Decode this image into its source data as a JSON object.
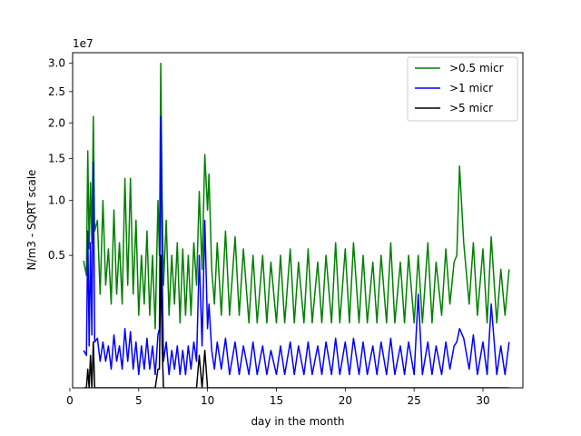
{
  "chart_data": {
    "type": "line",
    "title": "",
    "xlabel": "day in the month",
    "ylabel": "N/m3 - SQRT scale",
    "offset_text": "1e7",
    "y_scale": "sqrt",
    "xlim": [
      0.2,
      32.9
    ],
    "ylim": [
      0,
      3.2
    ],
    "y_multiplier": 10000000,
    "x_ticks": [
      0,
      5,
      10,
      15,
      20,
      25,
      30
    ],
    "y_ticks": [
      0.5,
      1.0,
      1.5,
      2.0,
      2.5,
      3.0
    ],
    "y_tick_labels": [
      "0.5",
      "1.0",
      "1.5",
      "2.0",
      "2.5",
      "3.0"
    ],
    "grid": false,
    "legend_position": "top-right",
    "series": [
      {
        "name": ">0.5 micr",
        "color": "#008000",
        "x": [
          1.0,
          1.2,
          1.3,
          1.4,
          1.5,
          1.6,
          1.7,
          1.8,
          2.0,
          2.2,
          2.4,
          2.6,
          2.8,
          3.0,
          3.2,
          3.4,
          3.6,
          3.8,
          4.0,
          4.2,
          4.4,
          4.6,
          4.8,
          5.0,
          5.2,
          5.4,
          5.6,
          5.8,
          6.0,
          6.2,
          6.4,
          6.5,
          6.6,
          6.7,
          6.8,
          7.0,
          7.2,
          7.4,
          7.6,
          7.8,
          8.0,
          8.2,
          8.4,
          8.6,
          8.8,
          9.0,
          9.2,
          9.4,
          9.6,
          9.8,
          10.0,
          10.1,
          10.3,
          10.5,
          10.7,
          11.0,
          11.3,
          11.6,
          12.0,
          12.3,
          12.6,
          13.0,
          13.3,
          13.6,
          14.0,
          14.3,
          14.6,
          15.0,
          15.3,
          15.6,
          16.0,
          16.3,
          16.6,
          17.0,
          17.3,
          17.6,
          18.0,
          18.3,
          18.6,
          19.0,
          19.3,
          19.6,
          20.0,
          20.3,
          20.6,
          21.0,
          21.3,
          21.6,
          22.0,
          22.3,
          22.6,
          23.0,
          23.3,
          23.6,
          24.0,
          24.3,
          24.6,
          25.0,
          25.3,
          25.6,
          26.0,
          26.3,
          26.6,
          27.0,
          27.3,
          27.6,
          27.9,
          28.1,
          28.3,
          28.6,
          29.0,
          29.3,
          29.6,
          30.0,
          30.3,
          30.6,
          31.0,
          31.3,
          31.6,
          31.9
        ],
        "values": [
          0.46,
          0.36,
          1.6,
          0.55,
          1.2,
          0.6,
          2.1,
          0.7,
          0.8,
          0.25,
          1.0,
          0.3,
          0.55,
          0.2,
          0.9,
          0.25,
          0.6,
          0.2,
          1.25,
          0.3,
          1.25,
          0.25,
          0.8,
          0.15,
          0.5,
          0.2,
          0.7,
          0.15,
          0.5,
          0.1,
          1.0,
          0.5,
          3.0,
          1.1,
          0.3,
          0.8,
          0.15,
          0.5,
          0.2,
          0.6,
          0.12,
          0.55,
          0.15,
          0.5,
          0.15,
          0.6,
          0.3,
          1.1,
          0.4,
          1.55,
          0.9,
          1.3,
          0.4,
          0.2,
          0.6,
          0.15,
          0.7,
          0.15,
          0.65,
          0.15,
          0.55,
          0.12,
          0.5,
          0.12,
          0.5,
          0.12,
          0.45,
          0.12,
          0.5,
          0.12,
          0.55,
          0.12,
          0.45,
          0.12,
          0.55,
          0.12,
          0.45,
          0.12,
          0.5,
          0.12,
          0.6,
          0.12,
          0.55,
          0.12,
          0.6,
          0.12,
          0.5,
          0.12,
          0.45,
          0.12,
          0.5,
          0.12,
          0.6,
          0.12,
          0.45,
          0.12,
          0.5,
          0.12,
          0.5,
          0.12,
          0.6,
          0.12,
          0.45,
          0.15,
          0.55,
          0.2,
          0.45,
          0.5,
          1.4,
          0.6,
          0.2,
          0.6,
          0.15,
          0.55,
          0.12,
          0.65,
          0.12,
          0.4,
          0.15,
          0.4
        ]
      },
      {
        "name": ">1 micr",
        "color": "#0000ff",
        "x": [
          1.0,
          1.2,
          1.3,
          1.4,
          1.5,
          1.6,
          1.7,
          1.8,
          2.0,
          2.2,
          2.4,
          2.6,
          2.8,
          3.0,
          3.2,
          3.4,
          3.6,
          3.8,
          4.0,
          4.2,
          4.4,
          4.6,
          4.8,
          5.0,
          5.2,
          5.4,
          5.6,
          5.8,
          6.0,
          6.2,
          6.4,
          6.5,
          6.6,
          6.7,
          6.8,
          7.0,
          7.2,
          7.4,
          7.6,
          7.8,
          8.0,
          8.2,
          8.4,
          8.6,
          8.8,
          9.0,
          9.2,
          9.4,
          9.6,
          9.8,
          10.0,
          10.1,
          10.3,
          10.5,
          10.7,
          11.0,
          11.3,
          11.6,
          12.0,
          12.3,
          12.6,
          13.0,
          13.3,
          13.6,
          14.0,
          14.3,
          14.6,
          15.0,
          15.3,
          15.6,
          16.0,
          16.3,
          16.6,
          17.0,
          17.3,
          17.6,
          18.0,
          18.3,
          18.6,
          19.0,
          19.3,
          19.6,
          20.0,
          20.3,
          20.6,
          21.0,
          21.3,
          21.6,
          22.0,
          22.3,
          22.6,
          23.0,
          23.3,
          23.6,
          24.0,
          24.3,
          24.6,
          25.0,
          25.3,
          25.6,
          26.0,
          26.3,
          26.6,
          27.0,
          27.3,
          27.6,
          27.9,
          28.1,
          28.3,
          28.6,
          29.0,
          29.3,
          29.6,
          30.0,
          30.3,
          30.6,
          31.0,
          31.3,
          31.6,
          31.9
        ],
        "values": [
          0.04,
          0.03,
          0.7,
          0.05,
          0.6,
          0.08,
          1.45,
          0.06,
          0.07,
          0.02,
          0.06,
          0.02,
          0.05,
          0.01,
          0.08,
          0.02,
          0.05,
          0.01,
          0.1,
          0.02,
          0.09,
          0.01,
          0.06,
          0.005,
          0.05,
          0.01,
          0.07,
          0.01,
          0.05,
          0.005,
          0.08,
          0.1,
          2.1,
          0.4,
          0.02,
          0.06,
          0.005,
          0.04,
          0.01,
          0.05,
          0.005,
          0.04,
          0.005,
          0.05,
          0.01,
          0.06,
          0.02,
          0.5,
          0.05,
          0.8,
          0.1,
          0.2,
          0.04,
          0.01,
          0.06,
          0.01,
          0.07,
          0.005,
          0.06,
          0.005,
          0.05,
          0.005,
          0.06,
          0.005,
          0.05,
          0.005,
          0.04,
          0.005,
          0.05,
          0.005,
          0.06,
          0.005,
          0.05,
          0.005,
          0.06,
          0.005,
          0.05,
          0.005,
          0.06,
          0.005,
          0.07,
          0.005,
          0.06,
          0.005,
          0.07,
          0.005,
          0.06,
          0.005,
          0.05,
          0.005,
          0.06,
          0.005,
          0.07,
          0.005,
          0.05,
          0.005,
          0.06,
          0.005,
          0.25,
          0.005,
          0.06,
          0.005,
          0.05,
          0.005,
          0.06,
          0.01,
          0.05,
          0.06,
          0.1,
          0.07,
          0.01,
          0.08,
          0.005,
          0.06,
          0.005,
          0.2,
          0.005,
          0.05,
          0.005,
          0.06
        ]
      },
      {
        "name": ">5 micr",
        "color": "#000000",
        "x": [
          1.0,
          1.2,
          1.3,
          1.4,
          1.5,
          1.6,
          1.7,
          1.8,
          2.0,
          2.2,
          2.4,
          2.6,
          2.8,
          3.0,
          3.2,
          3.4,
          3.6,
          3.8,
          4.0,
          4.2,
          4.4,
          4.6,
          4.8,
          5.0,
          5.2,
          5.4,
          5.6,
          5.8,
          6.0,
          6.2,
          6.4,
          6.5,
          6.6,
          6.7,
          6.8,
          7.0,
          7.2,
          7.4,
          7.6,
          7.8,
          8.0,
          8.2,
          8.4,
          8.6,
          8.8,
          9.0,
          9.2,
          9.4,
          9.6,
          9.8,
          10.0,
          10.1,
          10.3,
          10.5,
          10.7,
          11.0,
          11.3,
          11.6,
          12.0,
          12.3,
          12.6,
          13.0,
          13.3,
          13.6,
          14.0,
          14.3,
          14.6,
          15.0,
          15.3,
          15.6,
          16.0,
          16.3,
          16.6,
          17.0,
          17.3,
          17.6,
          18.0,
          18.3,
          18.6,
          19.0,
          19.3,
          19.6,
          20.0,
          20.3,
          20.6,
          21.0,
          21.3,
          21.6,
          22.0,
          22.3,
          22.6,
          23.0,
          23.3,
          23.6,
          24.0,
          24.3,
          24.6,
          25.0,
          25.3,
          25.6,
          26.0,
          26.3,
          26.6,
          27.0,
          27.3,
          27.6,
          27.9,
          28.1,
          28.3,
          28.6,
          29.0,
          29.3,
          29.6,
          30.0,
          30.3,
          30.6,
          31.0,
          31.3,
          31.6,
          31.9
        ],
        "values": [
          0.0,
          0.0,
          0.01,
          0.0,
          0.03,
          0.0,
          0.06,
          0.0,
          0.0,
          0.0,
          0.0,
          0.0,
          0.0,
          0.0,
          0.0,
          0.0,
          0.0,
          0.0,
          0.0,
          0.0,
          0.0,
          0.0,
          0.0,
          0.0,
          0.0,
          0.0,
          0.0,
          0.0,
          0.0,
          0.0,
          0.01,
          0.01,
          0.5,
          0.05,
          0.0,
          0.0,
          0.0,
          0.0,
          0.0,
          0.0,
          0.0,
          0.0,
          0.0,
          0.0,
          0.0,
          0.0,
          0.0,
          0.03,
          0.0,
          0.04,
          0.0,
          0.0,
          0.0,
          0.0,
          0.0,
          0.0,
          0.0,
          0.0,
          0.0,
          0.0,
          0.0,
          0.0,
          0.0,
          0.0,
          0.0,
          0.0,
          0.0,
          0.0,
          0.0,
          0.0,
          0.0,
          0.0,
          0.0,
          0.0,
          0.0,
          0.0,
          0.0,
          0.0,
          0.0,
          0.0,
          0.0,
          0.0,
          0.0,
          0.0,
          0.0,
          0.0,
          0.0,
          0.0,
          0.0,
          0.0,
          0.0,
          0.0,
          0.0,
          0.0,
          0.0,
          0.0,
          0.0,
          0.0,
          0.0,
          0.0,
          0.0,
          0.0,
          0.0,
          0.0,
          0.0,
          0.0,
          0.0,
          0.0,
          0.0,
          0.0,
          0.0,
          0.0,
          0.0,
          0.0,
          0.0,
          0.0,
          0.0,
          0.0,
          0.0,
          0.0
        ]
      }
    ]
  }
}
